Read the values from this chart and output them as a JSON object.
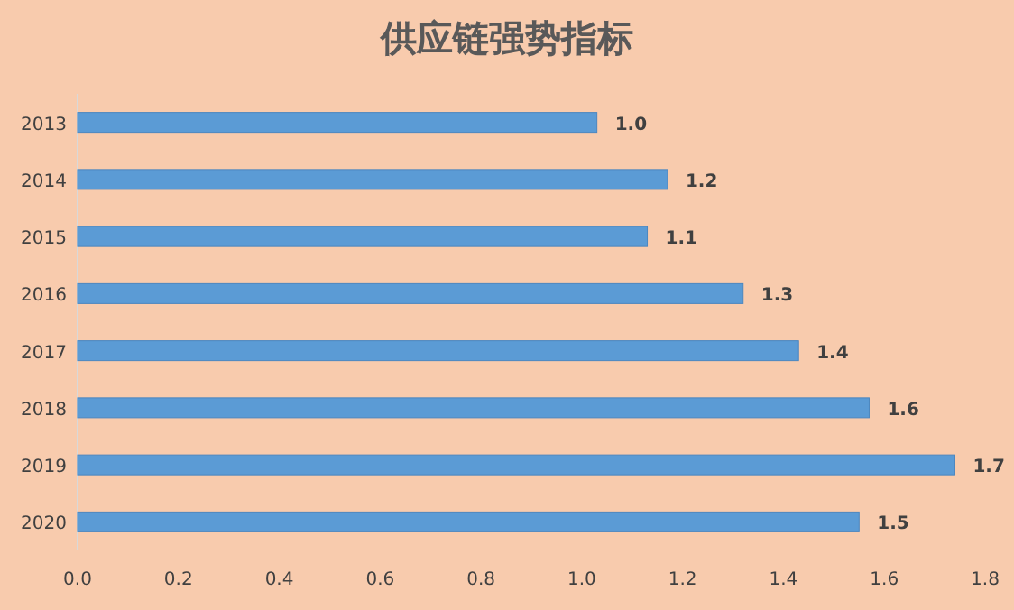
{
  "chart_data": {
    "type": "bar",
    "orientation": "horizontal",
    "title": "供应链强势指标",
    "categories": [
      "2013",
      "2014",
      "2015",
      "2016",
      "2017",
      "2018",
      "2019",
      "2020"
    ],
    "values": [
      1.03,
      1.17,
      1.13,
      1.32,
      1.43,
      1.57,
      1.74,
      1.55
    ],
    "value_labels": [
      "1.0",
      "1.2",
      "1.1",
      "1.3",
      "1.4",
      "1.6",
      "1.7",
      "1.5"
    ],
    "color": "#5b9bd5",
    "xlim": [
      0,
      1.8
    ],
    "xticks": [
      {
        "value": 0,
        "label": "0.0"
      },
      0.2,
      0.4,
      0.6,
      0.8,
      {
        "value": 1,
        "label": "1.0"
      },
      1.2,
      1.4,
      1.6,
      1.8
    ],
    "grid": false
  }
}
